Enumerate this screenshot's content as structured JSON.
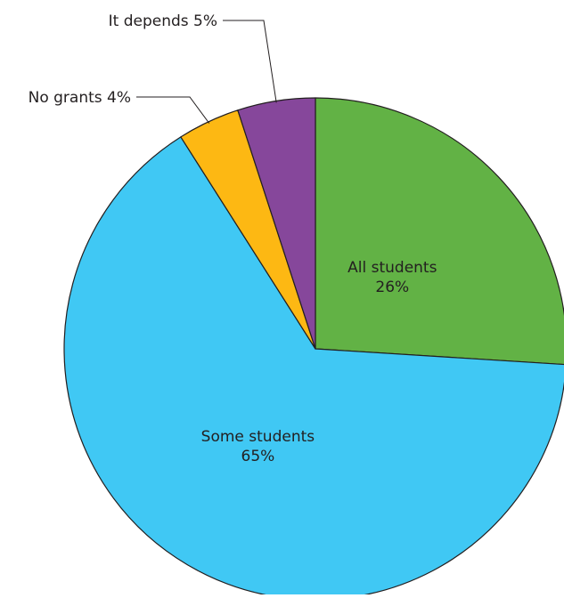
{
  "chart_data": {
    "type": "pie",
    "start_angle_deg": 0,
    "direction": "clockwise",
    "slices": [
      {
        "name": "All students",
        "value": 26,
        "label_lines": [
          "All students",
          "26%"
        ],
        "label_placement": "inside",
        "color": "#62b245"
      },
      {
        "name": "Some students",
        "value": 65,
        "label_lines": [
          "Some students",
          "65%"
        ],
        "label_placement": "inside",
        "color": "#40c8f4"
      },
      {
        "name": "No grants",
        "value": 4,
        "label_lines": [
          "No grants 4%"
        ],
        "label_placement": "leader-left",
        "color": "#fdb813"
      },
      {
        "name": "It depends",
        "value": 5,
        "label_lines": [
          "It depends  5%"
        ],
        "label_placement": "leader-top",
        "color": "#86479b"
      }
    ],
    "outline_color": "#231f20"
  }
}
